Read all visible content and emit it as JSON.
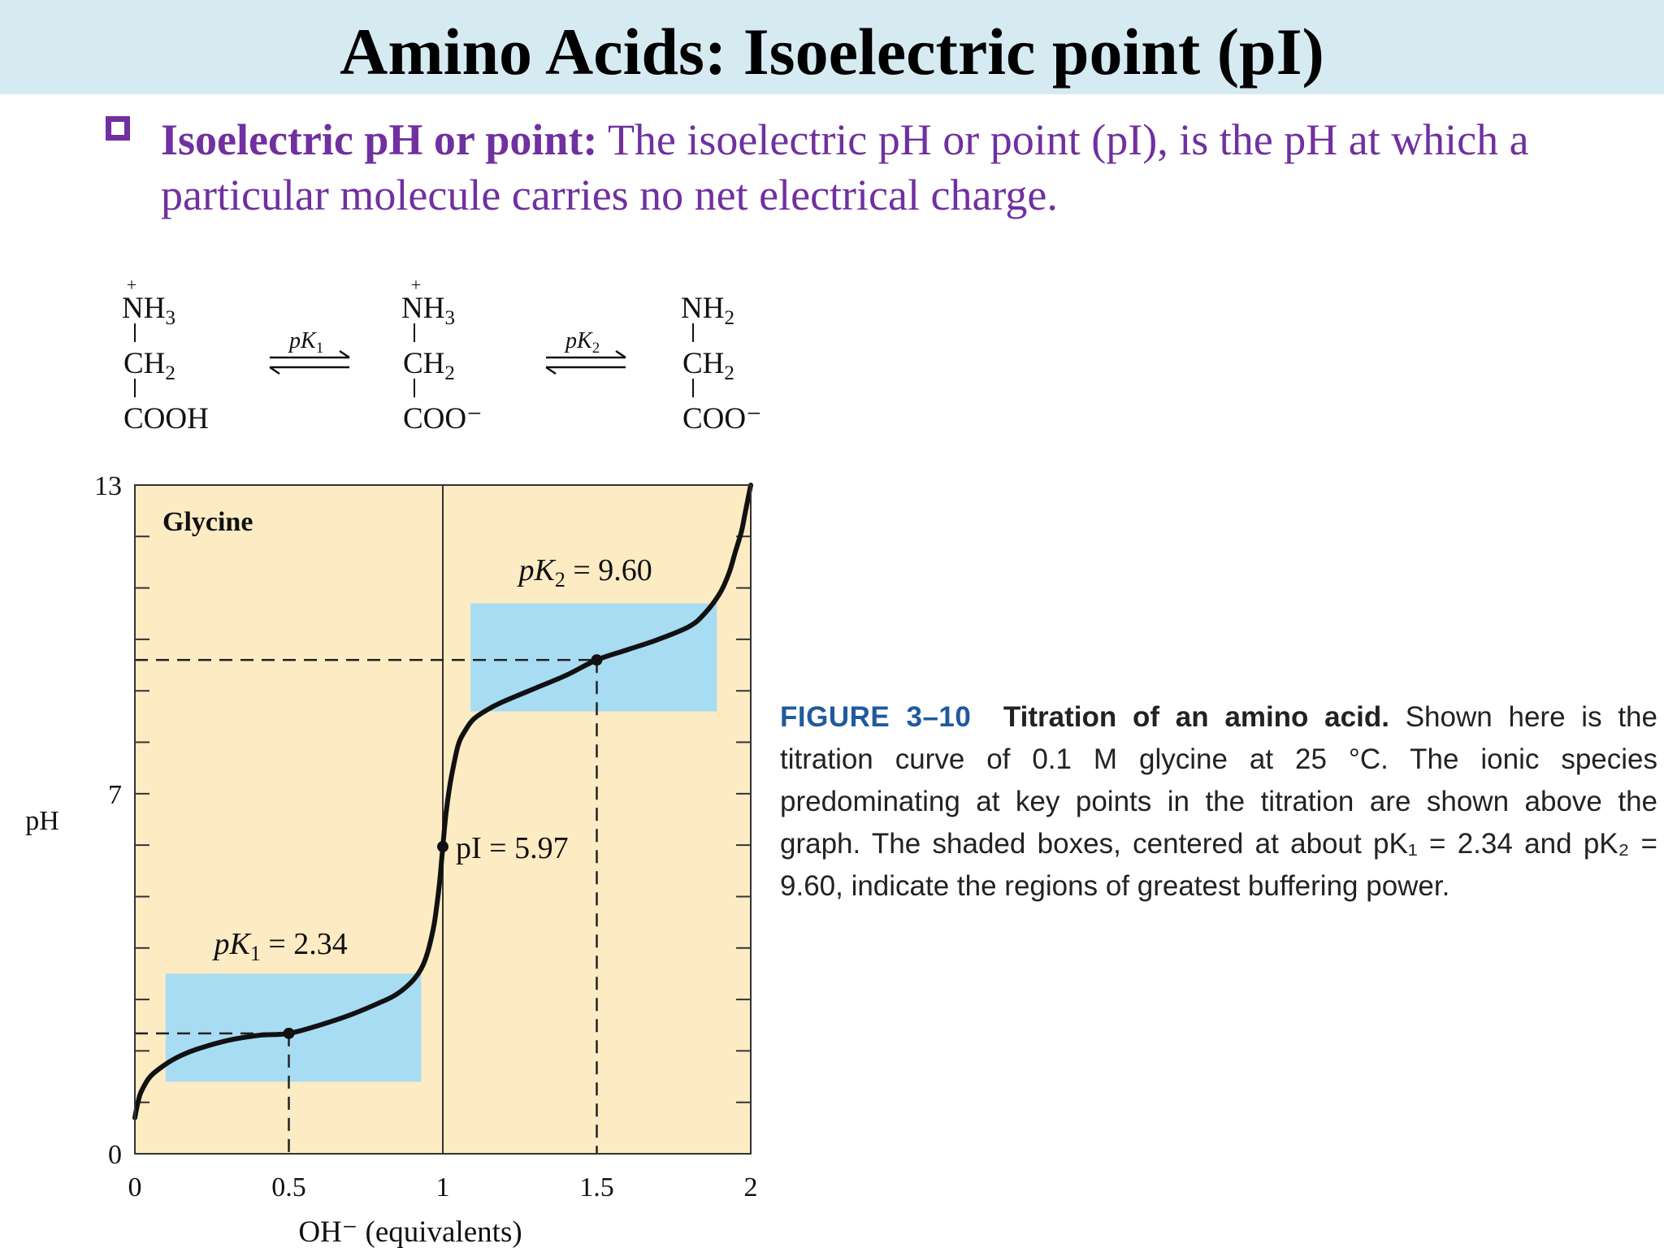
{
  "slide": {
    "title": "Amino Acids: Isoelectric point (pI)",
    "bullet": {
      "term": "Isoelectric pH or point:",
      "text": " The isoelectric pH or point (pI), is the pH at which a particular molecule carries no net electrical charge."
    }
  },
  "species": [
    {
      "top": "NH",
      "top_sub": "3",
      "top_charge": "+",
      "mid": "CH",
      "mid_sub": "2",
      "bottom": "COOH"
    },
    {
      "top": "NH",
      "top_sub": "3",
      "top_charge": "+",
      "mid": "CH",
      "mid_sub": "2",
      "bottom": "COO⁻"
    },
    {
      "top": "NH",
      "top_sub": "2",
      "top_charge": "",
      "mid": "CH",
      "mid_sub": "2",
      "bottom": "COO⁻"
    }
  ],
  "equilibria": [
    {
      "label": "pK",
      "sub": "1"
    },
    {
      "label": "pK",
      "sub": "2"
    }
  ],
  "figure_caption": {
    "number": "FIGURE 3–10",
    "title": "Titration of an amino acid.",
    "text": " Shown here is the titration curve of 0.1 M glycine at 25 °C. The ionic species predominating at key points in the titration are shown above the graph. The shaded boxes, centered at about pK₁ = 2.34 and pK₂ = 9.60, indicate the regions of greatest buffering power."
  },
  "chart_data": {
    "type": "line",
    "title": "Glycine",
    "xlabel": "OH⁻ (equivalents)",
    "ylabel": "pH",
    "xlim": [
      0,
      2
    ],
    "ylim": [
      0,
      13
    ],
    "x_ticks": [
      "0",
      "0.5",
      "1",
      "1.5",
      "2"
    ],
    "y_ticks": [
      "0",
      "7",
      "13"
    ],
    "series": [
      {
        "x": [
          0.0,
          0.01,
          0.02,
          0.05,
          0.1,
          0.15,
          0.2,
          0.3,
          0.4,
          0.5,
          0.6,
          0.7,
          0.8,
          0.85,
          0.9,
          0.93,
          0.95,
          0.97,
          0.98,
          0.99,
          1.0,
          1.01,
          1.02,
          1.03,
          1.05,
          1.07,
          1.1,
          1.15,
          1.2,
          1.3,
          1.4,
          1.5,
          1.6,
          1.7,
          1.8,
          1.85,
          1.9,
          1.93,
          1.95,
          1.97,
          1.98,
          1.99,
          2.0
        ],
        "y": [
          0.7,
          1.0,
          1.2,
          1.5,
          1.74,
          1.91,
          2.03,
          2.2,
          2.3,
          2.34,
          2.5,
          2.7,
          2.95,
          3.1,
          3.35,
          3.6,
          3.9,
          4.4,
          4.8,
          5.3,
          5.97,
          6.6,
          7.05,
          7.4,
          7.95,
          8.2,
          8.45,
          8.65,
          8.8,
          9.05,
          9.3,
          9.6,
          9.8,
          10.0,
          10.25,
          10.5,
          10.9,
          11.3,
          11.7,
          12.1,
          12.4,
          12.7,
          13.0
        ]
      }
    ],
    "buffer_regions": [
      {
        "x": [
          0.1,
          0.93
        ],
        "y": [
          1.4,
          3.5
        ]
      },
      {
        "x": [
          1.09,
          1.89
        ],
        "y": [
          8.6,
          10.7
        ]
      }
    ],
    "key_points": [
      {
        "x": 0.5,
        "y": 2.34,
        "label": "pK₁ = 2.34",
        "label_name": "pK",
        "label_sub": "1",
        "label_value": " = 2.34"
      },
      {
        "x": 1.0,
        "y": 5.97,
        "label": "pI = 5.97",
        "label_name": "pI",
        "label_sub": "",
        "label_value": " = 5.97"
      },
      {
        "x": 1.5,
        "y": 9.6,
        "label": "pK₂ = 9.60",
        "label_name": "pK",
        "label_sub": "2",
        "label_value": " = 9.60"
      }
    ],
    "colors": {
      "background": "#fdebc4",
      "buffer": "#a8dcf3",
      "curve": "#111111"
    }
  }
}
